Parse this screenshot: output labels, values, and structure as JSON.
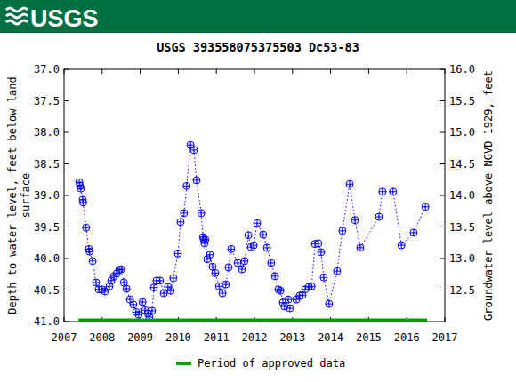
{
  "header": {
    "logo": "USGS"
  },
  "chart_data": {
    "type": "scatter",
    "title": "USGS 393558075375503 Dc53-83",
    "y_label": [
      "Depth to water level, feet below land",
      "surface"
    ],
    "y2_label": "Groundwater level above NGVD 1929, feet",
    "xlim": [
      2007,
      2017
    ],
    "xticks": [
      2007,
      2008,
      2009,
      2010,
      2011,
      2012,
      2013,
      2014,
      2015,
      2016,
      2017
    ],
    "ylim": [
      41.0,
      37.0
    ],
    "yticks": [
      {
        "value": 37,
        "label": "37.0"
      },
      {
        "value": 37.5,
        "label": "37.5"
      },
      {
        "value": 38,
        "label": "38.0"
      },
      {
        "value": 38.5,
        "label": "38.5"
      },
      {
        "value": 39,
        "label": "39.0"
      },
      {
        "value": 39.5,
        "label": "39.5"
      },
      {
        "value": 40,
        "label": "40.0"
      },
      {
        "value": 40.5,
        "label": "40.5"
      },
      {
        "value": 41,
        "label": "41.0"
      }
    ],
    "y2lim": [
      12.0,
      16.0
    ],
    "y2ticks": [
      {
        "value": 12.5,
        "label": "12.5"
      },
      {
        "value": 13,
        "label": "13.0"
      },
      {
        "value": 13.5,
        "label": "13.5"
      },
      {
        "value": 14,
        "label": "14.0"
      },
      {
        "value": 14.5,
        "label": "14.5"
      },
      {
        "value": 15,
        "label": "15.0"
      },
      {
        "value": 15.5,
        "label": "15.5"
      },
      {
        "value": 16,
        "label": "16.0"
      }
    ],
    "grid": false,
    "legend": "bottom",
    "series": [
      {
        "color": "#0000ff",
        "marker": "circle-plus",
        "line_style": "dotted",
        "x": [
          2007.4,
          2007.42,
          2007.44,
          2007.49,
          2007.5,
          2007.58,
          2007.65,
          2007.67,
          2007.75,
          2007.84,
          2007.91,
          2008.0,
          2008.07,
          2008.19,
          2008.24,
          2008.31,
          2008.38,
          2008.45,
          2008.5,
          2008.57,
          2008.64,
          2008.73,
          2008.82,
          2008.89,
          2008.96,
          2009.06,
          2009.13,
          2009.2,
          2009.24,
          2009.31,
          2009.36,
          2009.43,
          2009.52,
          2009.62,
          2009.73,
          2009.8,
          2009.87,
          2009.99,
          2010.06,
          2010.15,
          2010.22,
          2010.32,
          2010.41,
          2010.48,
          2010.6,
          2010.65,
          2010.67,
          2010.69,
          2010.71,
          2010.76,
          2010.83,
          2010.9,
          2010.97,
          2011.07,
          2011.16,
          2011.25,
          2011.32,
          2011.39,
          2011.56,
          2011.67,
          2011.74,
          2011.84,
          2011.91,
          2011.98,
          2012.07,
          2012.23,
          2012.33,
          2012.44,
          2012.54,
          2012.63,
          2012.68,
          2012.75,
          2012.79,
          2012.89,
          2012.93,
          2013.1,
          2013.19,
          2013.26,
          2013.33,
          2013.43,
          2013.5,
          2013.59,
          2013.68,
          2013.75,
          2013.82,
          2013.96,
          2014.17,
          2014.31,
          2014.5,
          2014.64,
          2014.78,
          2015.27,
          2015.36,
          2015.64,
          2015.86,
          2016.18,
          2016.49
        ],
        "values": [
          38.79,
          38.85,
          38.89,
          39.07,
          39.11,
          39.51,
          39.85,
          39.89,
          40.04,
          40.38,
          40.49,
          40.49,
          40.52,
          40.44,
          40.35,
          40.28,
          40.24,
          40.18,
          40.17,
          40.38,
          40.48,
          40.65,
          40.73,
          40.85,
          40.89,
          40.69,
          40.82,
          40.87,
          40.93,
          40.83,
          40.46,
          40.35,
          40.35,
          40.55,
          40.45,
          40.51,
          40.31,
          39.92,
          39.42,
          39.28,
          38.85,
          38.2,
          38.28,
          38.76,
          39.28,
          39.66,
          39.7,
          39.76,
          39.7,
          40.01,
          39.94,
          40.13,
          40.23,
          40.44,
          40.55,
          40.41,
          40.14,
          39.85,
          40.07,
          40.17,
          40.04,
          39.63,
          39.82,
          39.79,
          39.44,
          39.62,
          39.83,
          40.07,
          40.28,
          40.49,
          40.51,
          40.7,
          40.76,
          40.65,
          40.79,
          40.65,
          40.59,
          40.58,
          40.49,
          40.45,
          40.44,
          39.77,
          39.76,
          39.9,
          40.3,
          40.72,
          40.2,
          39.56,
          38.82,
          39.39,
          39.83,
          39.34,
          38.94,
          38.94,
          39.79,
          39.59,
          39.18
        ]
      },
      {
        "name": "Period of approved data",
        "type": "line",
        "color": "#00a000",
        "line_style": "solid",
        "x": [
          2007.38,
          2016.53
        ],
        "values": [
          40.98,
          40.98
        ]
      }
    ]
  }
}
